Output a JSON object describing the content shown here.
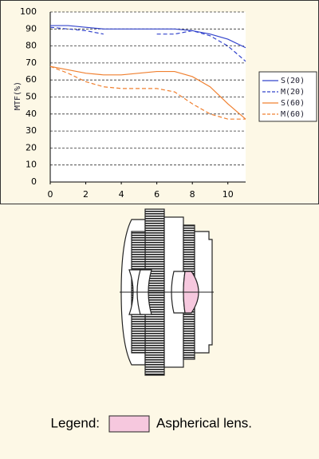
{
  "chart_data": {
    "type": "line",
    "y_label": "MTF(%)",
    "x": [
      0,
      1,
      2,
      3,
      4,
      5,
      6,
      7,
      8,
      9,
      10,
      11
    ],
    "series": [
      {
        "name": "S(20)",
        "color": "#3344cc",
        "dashed": false,
        "values": [
          92,
          92,
          91,
          90,
          90,
          90,
          90,
          90,
          89,
          87,
          84,
          79
        ]
      },
      {
        "name": "M(20)",
        "color": "#3344cc",
        "dashed": true,
        "values": [
          91,
          90,
          89,
          87,
          null,
          null,
          87,
          87,
          89,
          86,
          80,
          71
        ]
      },
      {
        "name": "S(60)",
        "color": "#f08030",
        "dashed": false,
        "values": [
          68,
          66,
          64,
          63,
          63,
          64,
          65,
          65,
          62,
          56,
          46,
          37
        ]
      },
      {
        "name": "M(60)",
        "color": "#f08030",
        "dashed": true,
        "values": [
          68,
          64,
          59,
          56,
          55,
          55,
          55,
          53,
          46,
          40,
          37,
          37
        ]
      }
    ],
    "xlim": [
      0,
      11
    ],
    "xticks": [
      0,
      2,
      4,
      6,
      8,
      10
    ],
    "ylim": [
      0,
      100
    ],
    "yticks": [
      0,
      10,
      20,
      30,
      40,
      50,
      60,
      70,
      80,
      90,
      100
    ],
    "grid": true,
    "legend": "right"
  },
  "lens_legend": {
    "label": "Legend:",
    "text": "Aspherical lens."
  }
}
